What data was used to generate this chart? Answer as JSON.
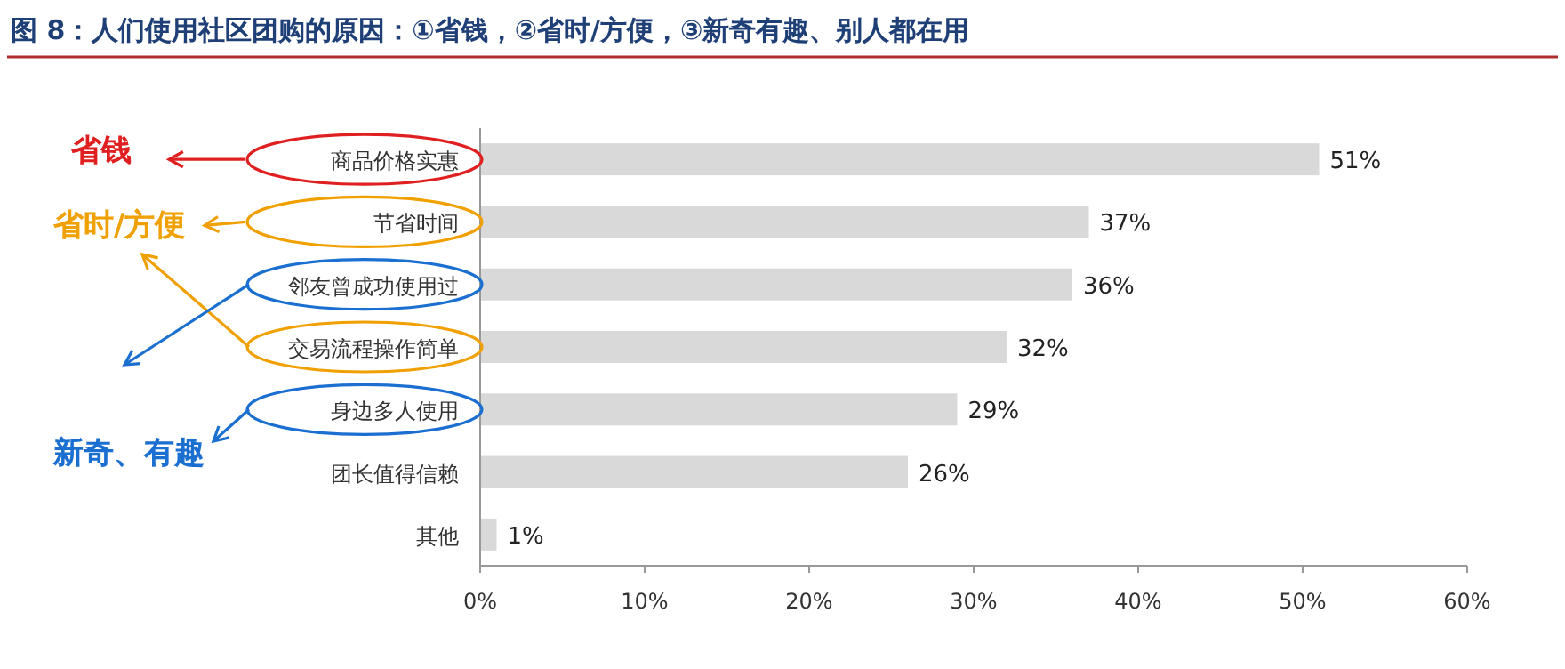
{
  "chart_data": {
    "type": "bar",
    "orientation": "horizontal",
    "title": "图 8：人们使用社区团购的原因：①省钱，②省时/方便，③新奇有趣、别人都在用",
    "categories": [
      "商品价格实惠",
      "节省时间",
      "邻友曾成功使用过",
      "交易流程操作简单",
      "身边多人使用",
      "团长值得信赖",
      "其他"
    ],
    "values": [
      51,
      37,
      36,
      32,
      29,
      26,
      1
    ],
    "value_labels": [
      "51%",
      "37%",
      "36%",
      "32%",
      "29%",
      "26%",
      "1%"
    ],
    "color": "#d9d9d9",
    "xlim": [
      0,
      60
    ],
    "xticks": [
      {
        "value": 0,
        "label": "0%"
      },
      {
        "value": 10,
        "label": "10%"
      },
      {
        "value": 20,
        "label": "20%"
      },
      {
        "value": 30,
        "label": "30%"
      },
      {
        "value": 40,
        "label": "40%"
      },
      {
        "value": 50,
        "label": "50%"
      },
      {
        "value": 60,
        "label": "60%"
      }
    ],
    "grid": false,
    "annotations": [
      "省钱",
      "省时/方便",
      "新奇、有趣"
    ]
  }
}
